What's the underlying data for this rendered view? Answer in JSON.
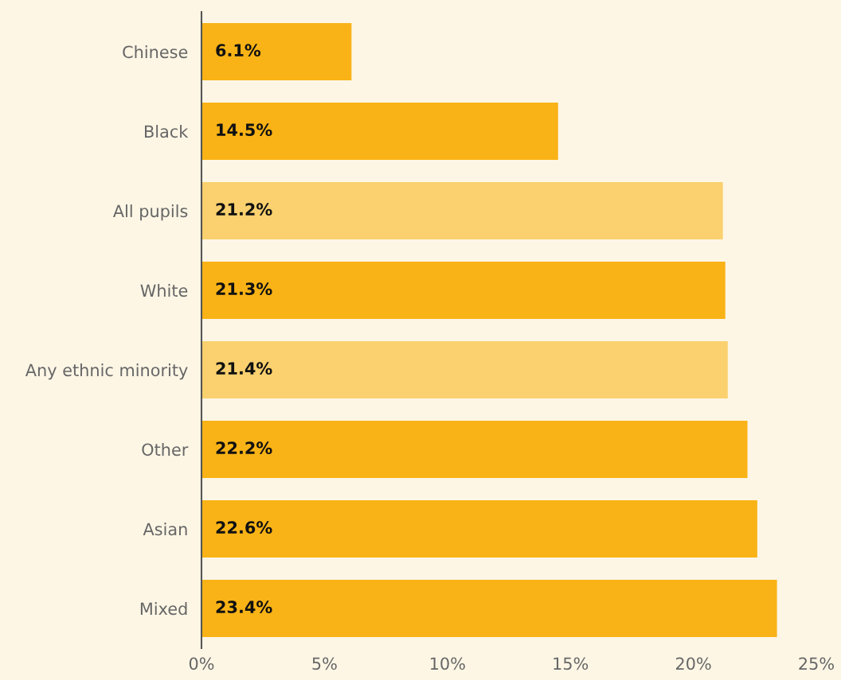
{
  "chart_data": {
    "type": "bar",
    "orientation": "horizontal",
    "categories": [
      "Chinese",
      "Black",
      "All pupils",
      "White",
      "Any ethnic minority",
      "Other",
      "Asian",
      "Mixed"
    ],
    "values": [
      6.1,
      14.5,
      21.2,
      21.3,
      21.4,
      22.2,
      22.6,
      23.4
    ],
    "value_labels": [
      "6.1%",
      "14.5%",
      "21.2%",
      "21.3%",
      "21.4%",
      "22.2%",
      "22.6%",
      "23.4%"
    ],
    "colors": [
      "#f9b316",
      "#f9b316",
      "#fad16e",
      "#f9b316",
      "#fad16e",
      "#f9b316",
      "#f9b316",
      "#f9b316"
    ],
    "xlim": [
      0,
      25
    ],
    "xticks": [
      {
        "value": 0,
        "label": "0%"
      },
      {
        "value": 5,
        "label": "5%"
      },
      {
        "value": 10,
        "label": "10%"
      },
      {
        "value": 15,
        "label": "15%"
      },
      {
        "value": 20,
        "label": "20%"
      },
      {
        "value": 25,
        "label": "25%"
      }
    ],
    "grid": false,
    "legend": false
  }
}
